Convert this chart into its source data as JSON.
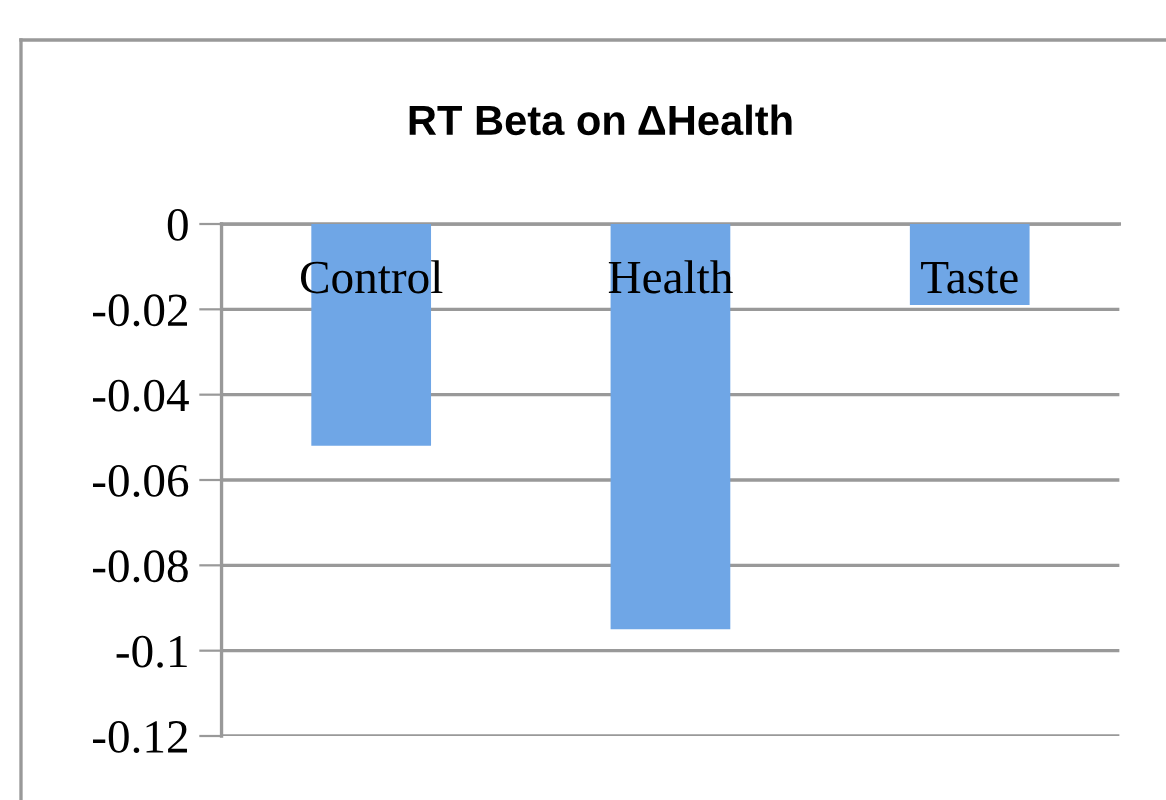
{
  "chart_data": {
    "type": "bar",
    "title": "RT Beta on ΔHealth",
    "categories": [
      "Control",
      "Health",
      "Taste"
    ],
    "values": [
      -0.052,
      -0.095,
      -0.019
    ],
    "color": "#6fa6e6",
    "ylim": [
      -0.12,
      0
    ],
    "yticks": [
      0,
      -0.02,
      -0.04,
      -0.06,
      -0.08,
      -0.1,
      -0.12
    ],
    "grid": "y"
  }
}
